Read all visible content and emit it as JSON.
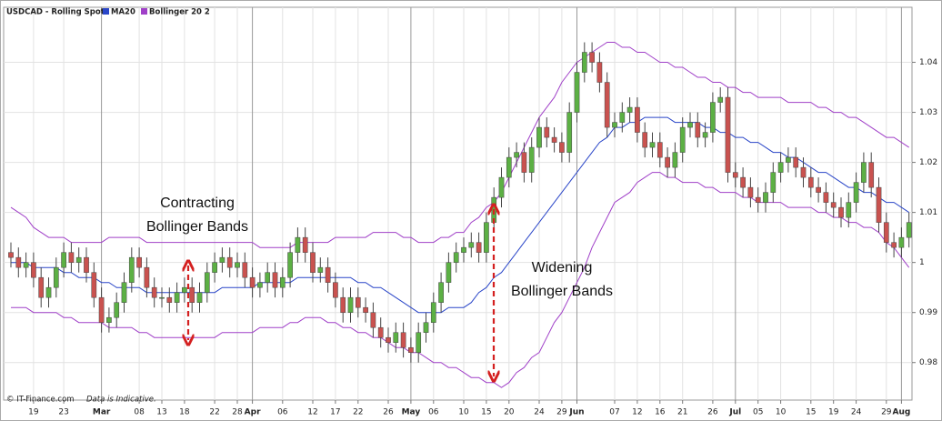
{
  "chart_data": {
    "type": "candlestick",
    "legend": "top-left",
    "grid": true,
    "source": "© IT-Finance.com",
    "disclaimer": "Data is Indicative.",
    "annotations": [
      [
        "Contracting",
        "Bollinger Bands"
      ],
      [
        "Widening",
        "Bollinger Bands"
      ]
    ],
    "categories": [
      null,
      null,
      null,
      "19",
      null,
      null,
      null,
      "23",
      null,
      null,
      null,
      null,
      "Mar",
      null,
      null,
      null,
      null,
      "08",
      null,
      null,
      "13",
      null,
      null,
      "18",
      null,
      null,
      null,
      "22",
      null,
      null,
      "28",
      null,
      "Apr",
      null,
      null,
      null,
      "06",
      null,
      null,
      null,
      "12",
      null,
      null,
      "17",
      null,
      null,
      "22",
      null,
      null,
      null,
      "26",
      null,
      null,
      "May",
      null,
      null,
      "06",
      null,
      null,
      null,
      "10",
      null,
      null,
      "15",
      null,
      null,
      "20",
      null,
      null,
      null,
      "24",
      null,
      null,
      "29",
      null,
      "Jun",
      null,
      null,
      null,
      null,
      "07",
      null,
      null,
      "12",
      null,
      null,
      "16",
      null,
      null,
      "21",
      null,
      null,
      null,
      "26",
      null,
      null,
      "Jul",
      null,
      null,
      "05",
      null,
      null,
      "10",
      null,
      null,
      null,
      "15",
      null,
      null,
      "19",
      null,
      null,
      "24",
      null,
      null,
      null,
      "29",
      null,
      "Aug",
      null
    ],
    "candles": {
      "name": "USDCAD - Rolling Spot",
      "up_color": "#5cb044",
      "down_color": "#c9524f",
      "open": [
        1.002,
        1.001,
        0.999,
        1.0,
        0.997,
        0.993,
        0.995,
        0.999,
        1.002,
        1.0,
        1.001,
        0.998,
        0.993,
        0.988,
        0.989,
        0.992,
        0.996,
        1.001,
        0.999,
        0.995,
        0.993,
        0.993,
        0.992,
        0.994,
        0.995,
        0.992,
        0.994,
        0.998,
        1.0,
        1.001,
        0.999,
        1.0,
        0.997,
        0.995,
        0.996,
        0.998,
        0.995,
        0.997,
        1.002,
        1.005,
        1.002,
        0.998,
        0.999,
        0.996,
        0.993,
        0.99,
        0.993,
        0.991,
        0.99,
        0.987,
        0.985,
        0.984,
        0.986,
        0.983,
        0.982,
        0.986,
        0.988,
        0.992,
        0.996,
        1.0,
        1.002,
        1.003,
        1.004,
        1.002,
        1.008,
        1.013,
        1.017,
        1.021,
        1.022,
        1.018,
        1.023,
        1.027,
        1.025,
        1.024,
        1.022,
        1.03,
        1.038,
        1.042,
        1.04,
        1.036,
        1.027,
        1.028,
        1.03,
        1.031,
        1.026,
        1.023,
        1.024,
        1.021,
        1.019,
        1.022,
        1.027,
        1.028,
        1.025,
        1.026,
        1.032,
        1.033,
        1.018,
        1.017,
        1.015,
        1.013,
        1.012,
        1.014,
        1.018,
        1.02,
        1.021,
        1.019,
        1.017,
        1.015,
        1.014,
        1.012,
        1.011,
        1.009,
        1.012,
        1.016,
        1.02,
        1.015,
        1.008,
        1.004,
        1.003,
        1.005
      ],
      "high": [
        1.004,
        1.003,
        1.002,
        1.002,
        0.999,
        0.997,
        1.001,
        1.004,
        1.004,
        1.003,
        1.003,
        1.0,
        0.995,
        0.991,
        0.994,
        0.998,
        1.003,
        1.003,
        1.001,
        0.997,
        0.995,
        0.995,
        0.996,
        0.997,
        0.997,
        0.996,
        1.0,
        1.002,
        1.003,
        1.003,
        1.002,
        1.002,
        0.999,
        0.998,
        1.0,
        1.0,
        0.999,
        1.004,
        1.007,
        1.007,
        1.004,
        1.001,
        1.001,
        0.998,
        0.995,
        0.995,
        0.995,
        0.993,
        0.992,
        0.989,
        0.987,
        0.988,
        0.988,
        0.985,
        0.988,
        0.99,
        0.994,
        0.998,
        1.002,
        1.004,
        1.005,
        1.006,
        1.006,
        1.01,
        1.015,
        1.019,
        1.023,
        1.024,
        1.024,
        1.025,
        1.029,
        1.029,
        1.027,
        1.026,
        1.032,
        1.04,
        1.044,
        1.044,
        1.042,
        1.038,
        1.03,
        1.032,
        1.033,
        1.033,
        1.028,
        1.026,
        1.026,
        1.023,
        1.024,
        1.029,
        1.03,
        1.03,
        1.028,
        1.034,
        1.035,
        1.035,
        1.02,
        1.019,
        1.017,
        1.015,
        1.016,
        1.02,
        1.022,
        1.023,
        1.023,
        1.021,
        1.019,
        1.017,
        1.016,
        1.014,
        1.013,
        1.014,
        1.018,
        1.022,
        1.022,
        1.017,
        1.01,
        1.006,
        1.007,
        1.01
      ],
      "low": [
        0.999,
        0.997,
        0.997,
        0.995,
        0.991,
        0.991,
        0.993,
        0.997,
        0.998,
        0.998,
        0.996,
        0.991,
        0.986,
        0.986,
        0.987,
        0.99,
        0.994,
        0.997,
        0.993,
        0.991,
        0.991,
        0.99,
        0.99,
        0.992,
        0.99,
        0.99,
        0.992,
        0.996,
        0.998,
        0.997,
        0.997,
        0.995,
        0.993,
        0.993,
        0.994,
        0.993,
        0.993,
        0.995,
        1.0,
        1.0,
        0.996,
        0.996,
        0.994,
        0.991,
        0.988,
        0.988,
        0.989,
        0.988,
        0.985,
        0.983,
        0.982,
        0.982,
        0.981,
        0.98,
        0.98,
        0.984,
        0.986,
        0.99,
        0.994,
        0.998,
        1.0,
        1.001,
        1.0,
        1.0,
        1.006,
        1.011,
        1.015,
        1.019,
        1.016,
        1.016,
        1.021,
        1.023,
        1.022,
        1.02,
        1.02,
        1.028,
        1.036,
        1.038,
        1.034,
        1.025,
        1.025,
        1.026,
        1.028,
        1.024,
        1.021,
        1.021,
        1.019,
        1.017,
        1.017,
        1.02,
        1.025,
        1.023,
        1.023,
        1.024,
        1.03,
        1.016,
        1.015,
        1.013,
        1.011,
        1.01,
        1.01,
        1.012,
        1.016,
        1.018,
        1.017,
        1.015,
        1.013,
        1.012,
        1.01,
        1.009,
        1.007,
        1.007,
        1.01,
        1.014,
        1.013,
        1.006,
        1.002,
        1.001,
        1.001,
        1.003
      ],
      "close": [
        1.001,
        0.999,
        1.0,
        0.997,
        0.993,
        0.995,
        0.999,
        1.002,
        1.0,
        1.001,
        0.998,
        0.993,
        0.988,
        0.989,
        0.992,
        0.996,
        1.001,
        0.999,
        0.995,
        0.993,
        0.993,
        0.992,
        0.994,
        0.995,
        0.992,
        0.994,
        0.998,
        1.0,
        1.001,
        0.999,
        1.0,
        0.997,
        0.995,
        0.996,
        0.998,
        0.995,
        0.997,
        1.002,
        1.005,
        1.002,
        0.998,
        0.999,
        0.996,
        0.993,
        0.99,
        0.993,
        0.991,
        0.99,
        0.987,
        0.985,
        0.984,
        0.986,
        0.983,
        0.982,
        0.986,
        0.988,
        0.992,
        0.996,
        1.0,
        1.002,
        1.003,
        1.004,
        1.002,
        1.008,
        1.013,
        1.017,
        1.021,
        1.022,
        1.018,
        1.023,
        1.027,
        1.025,
        1.024,
        1.022,
        1.03,
        1.038,
        1.042,
        1.04,
        1.036,
        1.027,
        1.028,
        1.03,
        1.031,
        1.026,
        1.023,
        1.024,
        1.021,
        1.019,
        1.022,
        1.027,
        1.028,
        1.025,
        1.026,
        1.032,
        1.033,
        1.018,
        1.017,
        1.015,
        1.013,
        1.012,
        1.014,
        1.018,
        1.02,
        1.021,
        1.019,
        1.017,
        1.015,
        1.014,
        1.012,
        1.011,
        1.009,
        1.012,
        1.016,
        1.02,
        1.015,
        1.008,
        1.004,
        1.003,
        1.005,
        1.008
      ]
    },
    "ma": {
      "name": "MA20",
      "color": "#2a46c8",
      "values": [
        1.0,
        1.0,
        1.0,
        0.999,
        0.999,
        0.999,
        0.999,
        0.998,
        0.998,
        0.997,
        0.997,
        0.997,
        0.996,
        0.996,
        0.995,
        0.995,
        0.995,
        0.995,
        0.994,
        0.994,
        0.994,
        0.994,
        0.994,
        0.994,
        0.994,
        0.994,
        0.994,
        0.994,
        0.995,
        0.995,
        0.995,
        0.995,
        0.995,
        0.996,
        0.996,
        0.996,
        0.996,
        0.996,
        0.997,
        0.997,
        0.997,
        0.997,
        0.997,
        0.997,
        0.997,
        0.997,
        0.996,
        0.996,
        0.995,
        0.995,
        0.994,
        0.993,
        0.992,
        0.991,
        0.99,
        0.99,
        0.99,
        0.99,
        0.991,
        0.991,
        0.991,
        0.992,
        0.994,
        0.995,
        0.997,
        0.998,
        1.0,
        1.002,
        1.004,
        1.006,
        1.008,
        1.01,
        1.012,
        1.014,
        1.016,
        1.018,
        1.02,
        1.022,
        1.024,
        1.025,
        1.027,
        1.027,
        1.028,
        1.028,
        1.029,
        1.029,
        1.029,
        1.029,
        1.028,
        1.028,
        1.028,
        1.028,
        1.027,
        1.027,
        1.026,
        1.026,
        1.025,
        1.025,
        1.024,
        1.024,
        1.023,
        1.022,
        1.022,
        1.021,
        1.021,
        1.02,
        1.019,
        1.018,
        1.018,
        1.017,
        1.016,
        1.015,
        1.015,
        1.014,
        1.014,
        1.013,
        1.012,
        1.012,
        1.011,
        1.01
      ]
    },
    "bands": {
      "name": "Bollinger 20 2",
      "color": "#a040c8",
      "upper": [
        1.011,
        1.01,
        1.009,
        1.007,
        1.006,
        1.005,
        1.005,
        1.005,
        1.004,
        1.004,
        1.004,
        1.004,
        1.004,
        1.005,
        1.005,
        1.005,
        1.005,
        1.005,
        1.004,
        1.004,
        1.004,
        1.004,
        1.004,
        1.004,
        1.004,
        1.004,
        1.004,
        1.004,
        1.004,
        1.004,
        1.004,
        1.004,
        1.004,
        1.003,
        1.003,
        1.003,
        1.003,
        1.003,
        1.004,
        1.004,
        1.004,
        1.004,
        1.004,
        1.005,
        1.005,
        1.005,
        1.005,
        1.005,
        1.006,
        1.006,
        1.006,
        1.006,
        1.005,
        1.005,
        1.004,
        1.004,
        1.004,
        1.005,
        1.005,
        1.006,
        1.006,
        1.008,
        1.009,
        1.011,
        1.012,
        1.014,
        1.017,
        1.02,
        1.023,
        1.026,
        1.029,
        1.031,
        1.033,
        1.036,
        1.038,
        1.04,
        1.041,
        1.042,
        1.043,
        1.044,
        1.044,
        1.043,
        1.043,
        1.042,
        1.042,
        1.041,
        1.04,
        1.04,
        1.039,
        1.039,
        1.038,
        1.037,
        1.037,
        1.036,
        1.036,
        1.035,
        1.035,
        1.034,
        1.034,
        1.033,
        1.033,
        1.033,
        1.033,
        1.032,
        1.032,
        1.032,
        1.032,
        1.031,
        1.031,
        1.03,
        1.03,
        1.029,
        1.029,
        1.028,
        1.027,
        1.026,
        1.025,
        1.025,
        1.024,
        1.023
      ],
      "lower": [
        0.991,
        0.991,
        0.991,
        0.99,
        0.99,
        0.99,
        0.99,
        0.989,
        0.989,
        0.988,
        0.988,
        0.988,
        0.988,
        0.987,
        0.987,
        0.987,
        0.987,
        0.986,
        0.986,
        0.985,
        0.985,
        0.985,
        0.985,
        0.985,
        0.985,
        0.985,
        0.985,
        0.985,
        0.986,
        0.986,
        0.986,
        0.986,
        0.986,
        0.987,
        0.987,
        0.987,
        0.987,
        0.988,
        0.988,
        0.989,
        0.989,
        0.989,
        0.988,
        0.988,
        0.987,
        0.987,
        0.986,
        0.986,
        0.985,
        0.985,
        0.984,
        0.983,
        0.983,
        0.982,
        0.982,
        0.981,
        0.98,
        0.98,
        0.979,
        0.979,
        0.978,
        0.977,
        0.977,
        0.976,
        0.976,
        0.975,
        0.976,
        0.978,
        0.979,
        0.981,
        0.982,
        0.985,
        0.988,
        0.99,
        0.993,
        0.996,
        0.999,
        1.003,
        1.006,
        1.009,
        1.012,
        1.013,
        1.014,
        1.016,
        1.017,
        1.018,
        1.018,
        1.017,
        1.017,
        1.016,
        1.016,
        1.016,
        1.015,
        1.015,
        1.014,
        1.014,
        1.014,
        1.013,
        1.013,
        1.012,
        1.012,
        1.012,
        1.012,
        1.011,
        1.011,
        1.011,
        1.011,
        1.01,
        1.01,
        1.009,
        1.009,
        1.008,
        1.008,
        1.007,
        1.007,
        1.006,
        1.004,
        1.003,
        1.001,
        0.999
      ]
    },
    "ylim": [
      0.9725,
      1.051
    ],
    "yticks": [
      0.98,
      0.99,
      1,
      1.01,
      1.02,
      1.03,
      1.04
    ]
  }
}
